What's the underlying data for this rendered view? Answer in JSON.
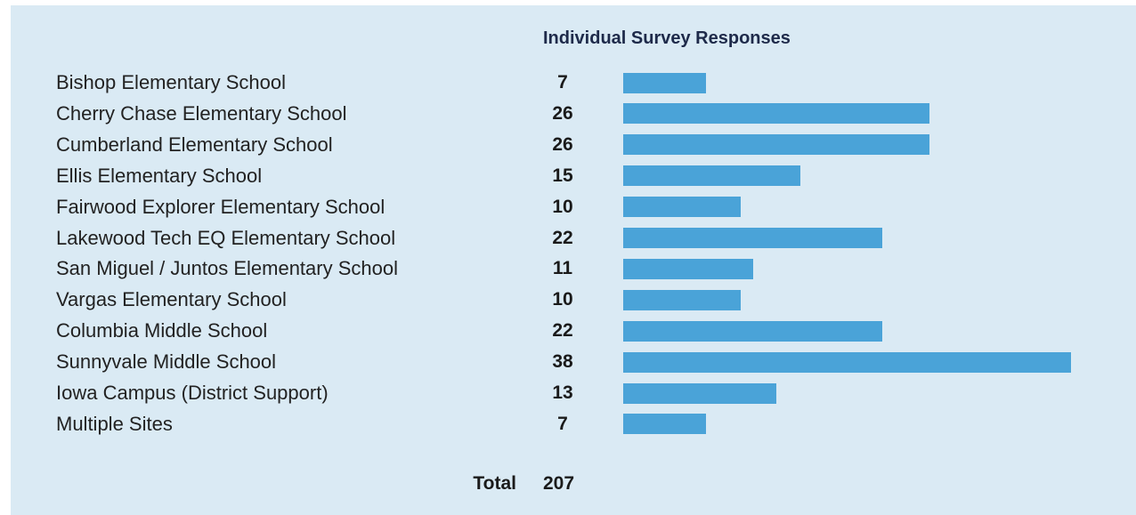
{
  "chart_data": {
    "type": "bar",
    "orientation": "horizontal",
    "title": "Individual Survey Responses",
    "categories": [
      "Bishop Elementary School",
      "Cherry Chase Elementary School",
      "Cumberland Elementary School",
      "Ellis Elementary School",
      "Fairwood Explorer Elementary School",
      "Lakewood Tech EQ Elementary School",
      "San Miguel / Juntos Elementary School",
      "Vargas Elementary School",
      "Columbia Middle School",
      "Sunnyvale Middle School",
      "Iowa Campus (District Support)",
      "Multiple Sites"
    ],
    "values": [
      7,
      26,
      26,
      15,
      10,
      22,
      11,
      10,
      22,
      38,
      13,
      7
    ],
    "value_labels": [
      "7",
      "26",
      "26",
      "15",
      "10",
      "22",
      "11",
      "10",
      "22",
      "38",
      "13",
      "7"
    ],
    "xlim": [
      0,
      38
    ],
    "grid": false,
    "bar_color": "#4aa3d8",
    "background_color": "#daeaf4"
  },
  "total": {
    "label": "Total",
    "value": "207"
  }
}
